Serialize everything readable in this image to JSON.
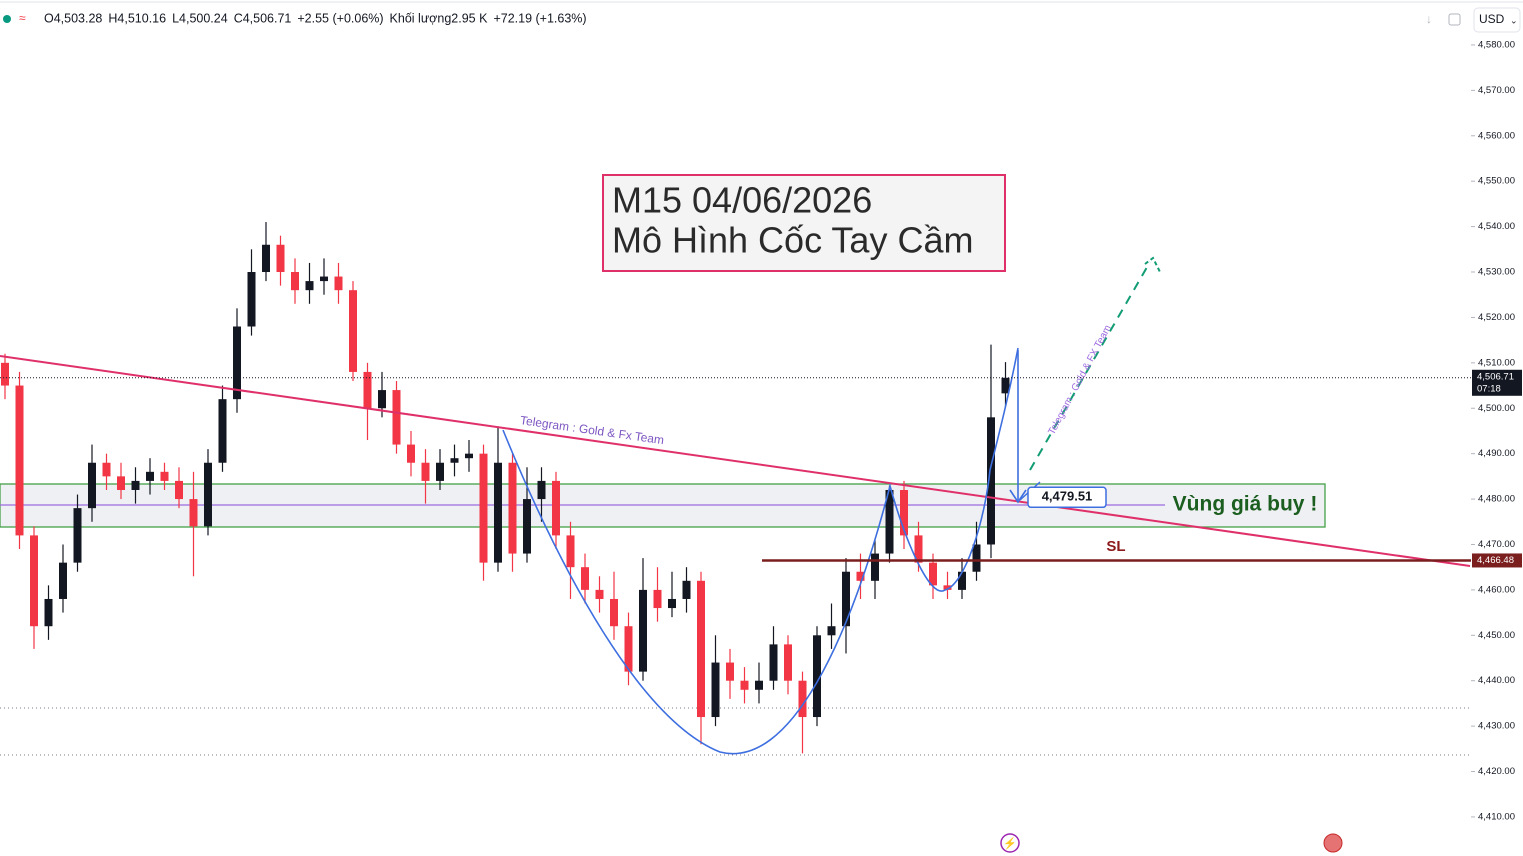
{
  "header": {
    "legend_items": [
      "O4,503.28",
      "H4,510.16",
      "L4,500.24",
      "C4,506.71",
      "+2.55 (+0.06%)",
      "Khối lượng2.95 K",
      "+72.19 (+1.63%)"
    ],
    "currency": "USD"
  },
  "chart_data": {
    "type": "candlestick",
    "open": [
      4510,
      4505,
      4472,
      4452,
      4458,
      4466,
      4478,
      4488,
      4485,
      4482,
      4484,
      4486,
      4484,
      4480,
      4474,
      4488,
      4502,
      4518,
      4530,
      4536,
      4530,
      4526,
      4528,
      4529,
      4526,
      4508,
      4500,
      4504,
      4492,
      4488,
      4484,
      4488,
      4489,
      4490,
      4466,
      4488,
      4468,
      4480,
      4484,
      4472,
      4465,
      4460,
      4458,
      4452,
      4442,
      4460,
      4456,
      4458,
      4462,
      4432,
      4444,
      4440,
      4438,
      4440,
      4448,
      4440,
      4432,
      4450,
      4452,
      4464,
      4462,
      4468,
      4482,
      4472,
      4466,
      4461,
      4460,
      4464,
      4470,
      4503.28
    ],
    "high": [
      4512,
      4508,
      4474,
      4461,
      4470,
      4481,
      4492,
      4490,
      4488,
      4487,
      4489,
      4488,
      4487,
      4486,
      4491,
      4505,
      4522,
      4535,
      4541,
      4538,
      4533,
      4532,
      4533,
      4532,
      4528,
      4510,
      4508,
      4506,
      4495,
      4491,
      4491,
      4492,
      4493,
      4492,
      4496,
      4490,
      4487,
      4487,
      4486,
      4475,
      4468,
      4463,
      4464,
      4455,
      4467,
      4465,
      4464,
      4465,
      4464,
      4450,
      4447,
      4443,
      4444,
      4452,
      4450,
      4442,
      4452,
      4457,
      4467,
      4468,
      4471,
      4483,
      4484,
      4475,
      4468,
      4464,
      4467,
      4475,
      4514,
      4510.16
    ],
    "low": [
      4502,
      4469,
      4447,
      4449,
      4455,
      4464,
      4475,
      4482,
      4480,
      4479,
      4481,
      4482,
      4478,
      4463,
      4472,
      4486,
      4499,
      4516,
      4528,
      4527,
      4523,
      4523,
      4525,
      4523,
      4506,
      4493,
      4498,
      4490,
      4485,
      4479,
      4482,
      4485,
      4486,
      4462,
      4464,
      4464,
      4466,
      4475,
      4469,
      4458,
      4457,
      4455,
      4449,
      4439,
      4440,
      4453,
      4454,
      4455,
      4426,
      4430,
      4436,
      4435,
      4435,
      4438,
      4437,
      4424,
      4430,
      4447,
      4446,
      4458,
      4458,
      4466,
      4469,
      4464,
      4458,
      4458,
      4458,
      4462,
      4467,
      4500.24
    ],
    "close": [
      4505,
      4472,
      4452,
      4458,
      4466,
      4478,
      4488,
      4485,
      4482,
      4484,
      4486,
      4484,
      4480,
      4474,
      4488,
      4502,
      4518,
      4530,
      4536,
      4530,
      4526,
      4528,
      4529,
      4526,
      4508,
      4500,
      4504,
      4492,
      4488,
      4484,
      4488,
      4489,
      4490,
      4466,
      4488,
      4468,
      4480,
      4484,
      4472,
      4465,
      4460,
      4458,
      4452,
      4442,
      4460,
      4456,
      4458,
      4462,
      4432,
      4444,
      4440,
      4438,
      4440,
      4448,
      4440,
      4432,
      4450,
      4452,
      4464,
      4462,
      4468,
      4482,
      4472,
      4466,
      4461,
      4460,
      4464,
      4470,
      4498,
      4506.71
    ],
    "up_color": "#131722",
    "down_color": "#f23645",
    "ylim": [
      4401.4,
      4589.9
    ],
    "yticks": [
      {
        "value": 4410,
        "label": "4,410.00"
      },
      {
        "value": 4420,
        "label": "4,420.00"
      },
      {
        "value": 4430,
        "label": "4,430.00"
      },
      {
        "value": 4440,
        "label": "4,440.00"
      },
      {
        "value": 4450,
        "label": "4,450.00"
      },
      {
        "value": 4460,
        "label": "4,460.00"
      },
      {
        "value": 4470,
        "label": "4,470.00"
      },
      {
        "value": 4480,
        "label": "4,480.00"
      },
      {
        "value": 4490,
        "label": "4,490.00"
      },
      {
        "value": 4500,
        "label": "4,500.00"
      },
      {
        "value": 4510,
        "label": "4,510.00"
      },
      {
        "value": 4520,
        "label": "4,520.00"
      },
      {
        "value": 4530,
        "label": "4,530.00"
      },
      {
        "value": 4540,
        "label": "4,540.00"
      },
      {
        "value": 4550,
        "label": "4,550.00"
      },
      {
        "value": 4560,
        "label": "4,560.00"
      },
      {
        "value": 4570,
        "label": "4,570.00"
      },
      {
        "value": 4580,
        "label": "4,580.00"
      }
    ],
    "current_price": {
      "value": 4506.71,
      "label": "4,506.71",
      "countdown": "07:18"
    },
    "sl_price": {
      "value": 4466.48,
      "label": "4,466.48"
    },
    "target_tag": {
      "value": 4479.51,
      "label": "4,479.51"
    },
    "title_lines": [
      "M15 04/06/2026",
      "Mô Hình Cốc Tay Cầm"
    ],
    "zone_label": "Vùng giá buy !",
    "sl_label": "SL",
    "trendline_label": "Telegram : Gold & Fx Team",
    "arrow_label": "Telegram : Gold & FX Team"
  }
}
